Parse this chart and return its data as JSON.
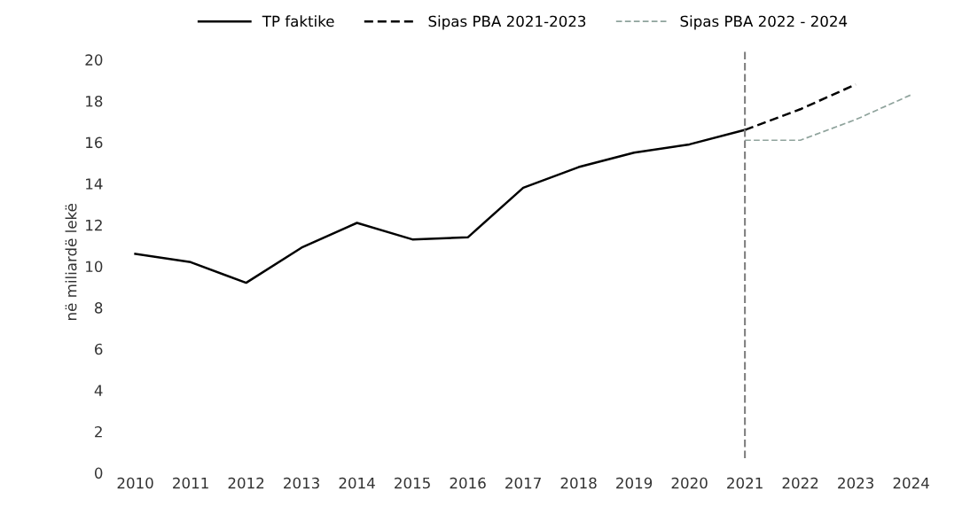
{
  "chart_data": {
    "type": "line",
    "ylabel": "në miliardë lekë",
    "categories": [
      "2010",
      "2011",
      "2012",
      "2013",
      "2014",
      "2015",
      "2016",
      "2017",
      "2018",
      "2019",
      "2020",
      "2021",
      "2022",
      "2023",
      "2024"
    ],
    "series": [
      {
        "name": "TP faktike",
        "color": "#000000",
        "line_style": "solid",
        "values": [
          10.6,
          10.2,
          9.2,
          10.9,
          12.1,
          11.3,
          11.4,
          13.8,
          14.8,
          15.5,
          15.9,
          16.6,
          null,
          null,
          null
        ]
      },
      {
        "name": "Sipas PBA 2021-2023",
        "color": "#000000",
        "line_style": "dashed",
        "values": [
          null,
          null,
          null,
          null,
          null,
          null,
          null,
          null,
          null,
          null,
          null,
          16.6,
          17.6,
          18.8,
          null
        ]
      },
      {
        "name": "Sipas PBA 2022 - 2024",
        "color": "#8fa39c",
        "line_style": "dashed",
        "values": [
          null,
          null,
          null,
          null,
          null,
          null,
          null,
          null,
          null,
          null,
          null,
          16.1,
          16.1,
          17.1,
          18.3
        ]
      }
    ],
    "ylim": [
      0,
      20.4
    ],
    "yticks": [
      0,
      2,
      4,
      6,
      8,
      10,
      12,
      14,
      16,
      18,
      20
    ],
    "ref_lines": [
      {
        "axis": "x",
        "value": "2021",
        "color": "#7f7f7f",
        "line_style": "dashed"
      }
    ],
    "grid": false,
    "legend": "top",
    "marker": "none"
  }
}
